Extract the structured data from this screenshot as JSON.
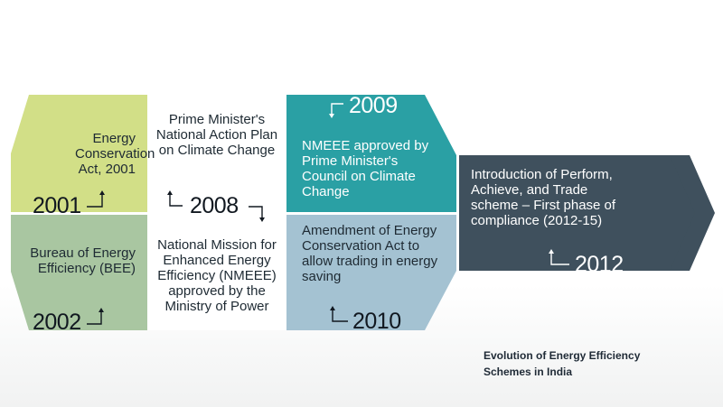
{
  "blocks": [
    {
      "id": "2001",
      "year": "2001",
      "text": "Energy Conservation Act, 2001",
      "color": "#d2df87"
    },
    {
      "id": "2002",
      "year": "2002",
      "text": "Bureau of Energy Efficiency (BEE)",
      "color": "#a9c6a1"
    },
    {
      "id": "2008",
      "year": "2008",
      "text_top": "Prime Minister's National Action Plan on Climate Change",
      "text_bottom": "National Mission for Enhanced Energy Efficiency (NMEEE) approved by the Ministry of Power",
      "color": "#ffffff"
    },
    {
      "id": "2009",
      "year": "2009",
      "text": "NMEEE approved by Prime Minister's Council on Climate Change",
      "color": "#2aa0a4"
    },
    {
      "id": "2010",
      "year": "2010",
      "text": "Amendment of Energy Conservation Act to allow trading in energy saving",
      "color": "#a4c2d2"
    },
    {
      "id": "2012",
      "year": "2012",
      "text": "Introduction of Perform, Achieve, and Trade scheme – First phase of compliance (2012-15)",
      "color": "#3f505d"
    }
  ],
  "caption": "Evolution of Energy Efficiency Schemes in India"
}
